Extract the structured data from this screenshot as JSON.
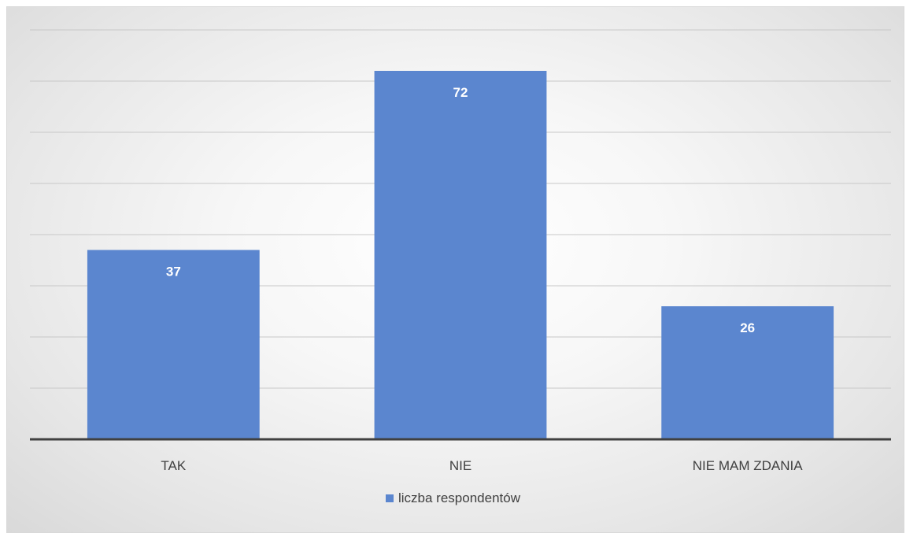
{
  "chart_data": {
    "type": "bar",
    "categories": [
      "TAK",
      "NIE",
      "NIE MAM ZDANIA"
    ],
    "series": [
      {
        "name": "liczba respondentów",
        "values": [
          37,
          72,
          26
        ],
        "color": "#5b86cf"
      }
    ],
    "ylim": [
      0,
      80
    ],
    "grid": true,
    "legend_position": "bottom",
    "data_labels": true
  }
}
